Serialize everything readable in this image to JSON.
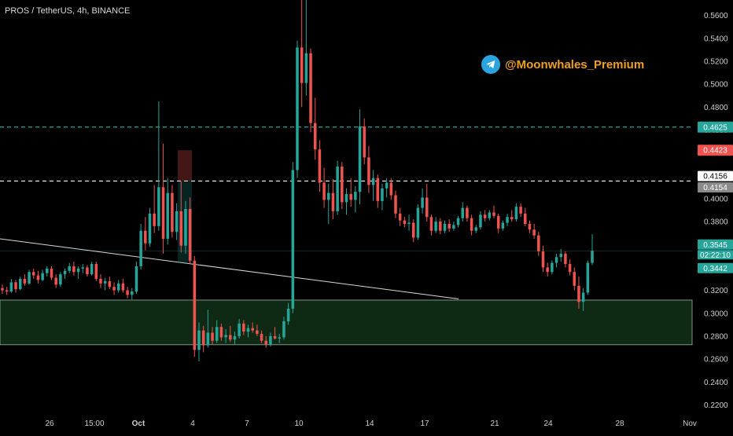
{
  "header": {
    "title": "PROS / TetherUS, 4h, BINANCE"
  },
  "brand": {
    "handle": "@Moonwhales_Premium",
    "icon": "telegram-icon"
  },
  "chart_data": {
    "type": "candlestick",
    "symbol": "PROS / TetherUS",
    "interval": "4h",
    "exchange": "BINANCE",
    "ylim": [
      0.21,
      0.57
    ],
    "y_ticks": [
      "0.2200",
      "0.2400",
      "0.2600",
      "0.2800",
      "0.3000",
      "0.3200",
      "0.3400",
      "0.3600",
      "0.3800",
      "0.4000",
      "0.4200",
      "0.4400",
      "0.4600",
      "0.4800",
      "0.5000",
      "0.5200",
      "0.5400",
      "0.5600"
    ],
    "x_ticks": [
      "26",
      "15:00",
      "Oct",
      "4",
      "7",
      "10",
      "14",
      "17",
      "21",
      "24",
      "28",
      "Nov"
    ],
    "price_labels": [
      {
        "text": "0.4625",
        "color": "#26a69a"
      },
      {
        "text": "0.4423",
        "color": "#ef5350"
      },
      {
        "text": "0.4156",
        "color": "#ffffff"
      },
      {
        "text": "0.4154",
        "color": "#8a8a8a"
      },
      {
        "text": "0.3545",
        "color": "#26a69a"
      },
      {
        "text": "02:22:10",
        "color": "#26a69a"
      },
      {
        "text": "0.3442",
        "color": "#26a69a"
      }
    ],
    "horizontal_lines": [
      {
        "price": 0.4625,
        "style": "dashed",
        "color": "#26a69a"
      },
      {
        "price": 0.4154,
        "style": "dashed",
        "color": "#ffffff"
      }
    ],
    "support_zone": [
      0.2725,
      0.3115
    ],
    "trendline": {
      "from": {
        "price": 0.365
      },
      "to": {
        "price": 0.3125
      }
    },
    "colors": {
      "up": "#26a69a",
      "down": "#ef5350",
      "zone": "#0e2a14"
    },
    "candles": [
      [
        0.322,
        0.325,
        0.317,
        0.32
      ],
      [
        0.32,
        0.323,
        0.316,
        0.319
      ],
      [
        0.319,
        0.33,
        0.318,
        0.327
      ],
      [
        0.327,
        0.329,
        0.318,
        0.321
      ],
      [
        0.321,
        0.332,
        0.32,
        0.33
      ],
      [
        0.33,
        0.334,
        0.324,
        0.326
      ],
      [
        0.326,
        0.338,
        0.325,
        0.336
      ],
      [
        0.336,
        0.339,
        0.33,
        0.333
      ],
      [
        0.333,
        0.337,
        0.326,
        0.329
      ],
      [
        0.329,
        0.338,
        0.328,
        0.335
      ],
      [
        0.335,
        0.341,
        0.332,
        0.339
      ],
      [
        0.339,
        0.341,
        0.329,
        0.331
      ],
      [
        0.331,
        0.334,
        0.322,
        0.325
      ],
      [
        0.325,
        0.336,
        0.323,
        0.334
      ],
      [
        0.334,
        0.339,
        0.33,
        0.337
      ],
      [
        0.337,
        0.344,
        0.335,
        0.341
      ],
      [
        0.341,
        0.345,
        0.333,
        0.336
      ],
      [
        0.336,
        0.341,
        0.33,
        0.339
      ],
      [
        0.339,
        0.343,
        0.335,
        0.34
      ],
      [
        0.34,
        0.342,
        0.332,
        0.334
      ],
      [
        0.334,
        0.345,
        0.333,
        0.343
      ],
      [
        0.343,
        0.345,
        0.328,
        0.33
      ],
      [
        0.33,
        0.334,
        0.322,
        0.326
      ],
      [
        0.326,
        0.331,
        0.32,
        0.328
      ],
      [
        0.328,
        0.332,
        0.321,
        0.323
      ],
      [
        0.323,
        0.327,
        0.316,
        0.32
      ],
      [
        0.32,
        0.329,
        0.318,
        0.326
      ],
      [
        0.326,
        0.33,
        0.318,
        0.32
      ],
      [
        0.32,
        0.323,
        0.313,
        0.316
      ],
      [
        0.316,
        0.322,
        0.312,
        0.319
      ],
      [
        0.319,
        0.345,
        0.317,
        0.341
      ],
      [
        0.341,
        0.378,
        0.338,
        0.372
      ],
      [
        0.372,
        0.384,
        0.355,
        0.361
      ],
      [
        0.361,
        0.392,
        0.358,
        0.387
      ],
      [
        0.387,
        0.412,
        0.37,
        0.376
      ],
      [
        0.376,
        0.485,
        0.372,
        0.41
      ],
      [
        0.41,
        0.448,
        0.352,
        0.365
      ],
      [
        0.365,
        0.418,
        0.36,
        0.405
      ],
      [
        0.405,
        0.412,
        0.366,
        0.371
      ],
      [
        0.371,
        0.396,
        0.364,
        0.389
      ],
      [
        0.389,
        0.415,
        0.353,
        0.359
      ],
      [
        0.359,
        0.398,
        0.352,
        0.391
      ],
      [
        0.391,
        0.401,
        0.343,
        0.346
      ],
      [
        0.346,
        0.35,
        0.262,
        0.268
      ],
      [
        0.268,
        0.292,
        0.258,
        0.285
      ],
      [
        0.285,
        0.289,
        0.266,
        0.272
      ],
      [
        0.272,
        0.303,
        0.27,
        0.283
      ],
      [
        0.283,
        0.288,
        0.273,
        0.276
      ],
      [
        0.276,
        0.294,
        0.274,
        0.288
      ],
      [
        0.288,
        0.291,
        0.276,
        0.279
      ],
      [
        0.279,
        0.286,
        0.274,
        0.281
      ],
      [
        0.281,
        0.289,
        0.275,
        0.277
      ],
      [
        0.277,
        0.284,
        0.273,
        0.28
      ],
      [
        0.28,
        0.295,
        0.278,
        0.291
      ],
      [
        0.291,
        0.294,
        0.281,
        0.284
      ],
      [
        0.284,
        0.29,
        0.279,
        0.287
      ],
      [
        0.287,
        0.292,
        0.283,
        0.285
      ],
      [
        0.285,
        0.29,
        0.28,
        0.282
      ],
      [
        0.282,
        0.285,
        0.274,
        0.276
      ],
      [
        0.276,
        0.28,
        0.27,
        0.273
      ],
      [
        0.273,
        0.283,
        0.271,
        0.28
      ],
      [
        0.28,
        0.288,
        0.277,
        0.278
      ],
      [
        0.278,
        0.282,
        0.274,
        0.279
      ],
      [
        0.279,
        0.297,
        0.277,
        0.293
      ],
      [
        0.293,
        0.309,
        0.29,
        0.304
      ],
      [
        0.304,
        0.432,
        0.3,
        0.425
      ],
      [
        0.425,
        0.538,
        0.418,
        0.532
      ],
      [
        0.532,
        0.583,
        0.48,
        0.501
      ],
      [
        0.501,
        0.575,
        0.49,
        0.527
      ],
      [
        0.527,
        0.531,
        0.458,
        0.466
      ],
      [
        0.466,
        0.488,
        0.434,
        0.443
      ],
      [
        0.443,
        0.451,
        0.406,
        0.414
      ],
      [
        0.414,
        0.427,
        0.392,
        0.399
      ],
      [
        0.399,
        0.413,
        0.378,
        0.405
      ],
      [
        0.405,
        0.417,
        0.382,
        0.389
      ],
      [
        0.389,
        0.433,
        0.386,
        0.428
      ],
      [
        0.428,
        0.432,
        0.391,
        0.397
      ],
      [
        0.397,
        0.409,
        0.386,
        0.404
      ],
      [
        0.404,
        0.418,
        0.393,
        0.399
      ],
      [
        0.399,
        0.411,
        0.388,
        0.406
      ],
      [
        0.406,
        0.478,
        0.395,
        0.463
      ],
      [
        0.463,
        0.47,
        0.43,
        0.436
      ],
      [
        0.436,
        0.446,
        0.405,
        0.412
      ],
      [
        0.412,
        0.425,
        0.398,
        0.418
      ],
      [
        0.418,
        0.421,
        0.392,
        0.398
      ],
      [
        0.398,
        0.413,
        0.39,
        0.409
      ],
      [
        0.409,
        0.418,
        0.401,
        0.414
      ],
      [
        0.414,
        0.418,
        0.399,
        0.403
      ],
      [
        0.403,
        0.407,
        0.383,
        0.387
      ],
      [
        0.387,
        0.392,
        0.376,
        0.381
      ],
      [
        0.381,
        0.384,
        0.375,
        0.378
      ],
      [
        0.378,
        0.386,
        0.372,
        0.379
      ],
      [
        0.379,
        0.382,
        0.362,
        0.366
      ],
      [
        0.366,
        0.395,
        0.364,
        0.392
      ],
      [
        0.392,
        0.409,
        0.387,
        0.401
      ],
      [
        0.401,
        0.413,
        0.38,
        0.384
      ],
      [
        0.384,
        0.386,
        0.368,
        0.372
      ],
      [
        0.372,
        0.384,
        0.37,
        0.38
      ],
      [
        0.38,
        0.383,
        0.369,
        0.372
      ],
      [
        0.372,
        0.381,
        0.37,
        0.378
      ],
      [
        0.378,
        0.382,
        0.371,
        0.374
      ],
      [
        0.374,
        0.38,
        0.372,
        0.377
      ],
      [
        0.377,
        0.385,
        0.375,
        0.383
      ],
      [
        0.383,
        0.397,
        0.38,
        0.392
      ],
      [
        0.392,
        0.394,
        0.38,
        0.383
      ],
      [
        0.383,
        0.386,
        0.368,
        0.372
      ],
      [
        0.372,
        0.377,
        0.37,
        0.375
      ],
      [
        0.375,
        0.389,
        0.373,
        0.386
      ],
      [
        0.386,
        0.39,
        0.38,
        0.383
      ],
      [
        0.383,
        0.39,
        0.381,
        0.388
      ],
      [
        0.388,
        0.394,
        0.383,
        0.385
      ],
      [
        0.385,
        0.387,
        0.37,
        0.374
      ],
      [
        0.374,
        0.381,
        0.372,
        0.379
      ],
      [
        0.379,
        0.387,
        0.376,
        0.384
      ],
      [
        0.384,
        0.39,
        0.38,
        0.382
      ],
      [
        0.382,
        0.396,
        0.38,
        0.393
      ],
      [
        0.393,
        0.396,
        0.384,
        0.387
      ],
      [
        0.387,
        0.392,
        0.376,
        0.378
      ],
      [
        0.378,
        0.381,
        0.37,
        0.373
      ],
      [
        0.373,
        0.378,
        0.365,
        0.368
      ],
      [
        0.368,
        0.371,
        0.35,
        0.354
      ],
      [
        0.354,
        0.359,
        0.336,
        0.34
      ],
      [
        0.34,
        0.344,
        0.332,
        0.336
      ],
      [
        0.336,
        0.346,
        0.334,
        0.344
      ],
      [
        0.344,
        0.352,
        0.34,
        0.349
      ],
      [
        0.349,
        0.356,
        0.345,
        0.352
      ],
      [
        0.352,
        0.354,
        0.34,
        0.343
      ],
      [
        0.343,
        0.347,
        0.333,
        0.336
      ],
      [
        0.336,
        0.34,
        0.32,
        0.324
      ],
      [
        0.324,
        0.332,
        0.304,
        0.31
      ],
      [
        0.31,
        0.322,
        0.302,
        0.318
      ],
      [
        0.318,
        0.346,
        0.316,
        0.344
      ],
      [
        0.344,
        0.369,
        0.342,
        0.3545
      ]
    ]
  }
}
